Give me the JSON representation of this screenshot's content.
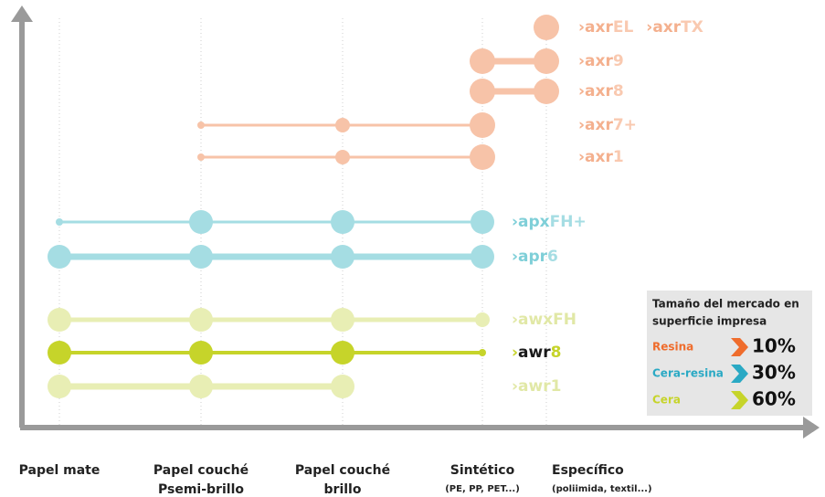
{
  "axis": {
    "categories": [
      {
        "lines": [
          "Papel mate"
        ]
      },
      {
        "lines": [
          "Papel couché",
          "Psemi-brillo"
        ]
      },
      {
        "lines": [
          "Papel couché",
          "brillo"
        ]
      },
      {
        "lines": [
          "Sintético"
        ],
        "note": "(PE, PP, PET...)"
      },
      {
        "lines": [
          "Específico"
        ],
        "note": "(poliimida, textil...)"
      }
    ]
  },
  "rows": [
    {
      "labels": [
        {
          "prefix": "axr",
          "suffix": "EL"
        },
        {
          "prefix": "axr",
          "suffix": "TX"
        }
      ]
    },
    {
      "labels": [
        {
          "prefix": "axr",
          "suffix": "9"
        }
      ]
    },
    {
      "labels": [
        {
          "prefix": "axr",
          "suffix": "8"
        }
      ]
    },
    {
      "labels": [
        {
          "prefix": "axr",
          "suffix": "7+"
        }
      ]
    },
    {
      "labels": [
        {
          "prefix": "axr",
          "suffix": "1"
        }
      ]
    },
    {
      "labels": [
        {
          "prefix": "apx",
          "suffix": "FH+"
        }
      ]
    },
    {
      "labels": [
        {
          "prefix": "apr",
          "suffix": "6"
        }
      ]
    },
    {
      "labels": [
        {
          "prefix": "awx",
          "suffix": "FH"
        }
      ]
    },
    {
      "labels": [
        {
          "prefix": "awr",
          "suffix": "8"
        }
      ]
    },
    {
      "labels": [
        {
          "prefix": "awr",
          "suffix": "1"
        }
      ]
    }
  ],
  "legend": {
    "title_lines": [
      "Tamaño del mercado en",
      "superficie impresa"
    ],
    "items": [
      {
        "name": "Resina",
        "share": "10%"
      },
      {
        "name": "Cera-resina",
        "share": "30%"
      },
      {
        "name": "Cera",
        "share": "60%"
      }
    ]
  }
}
